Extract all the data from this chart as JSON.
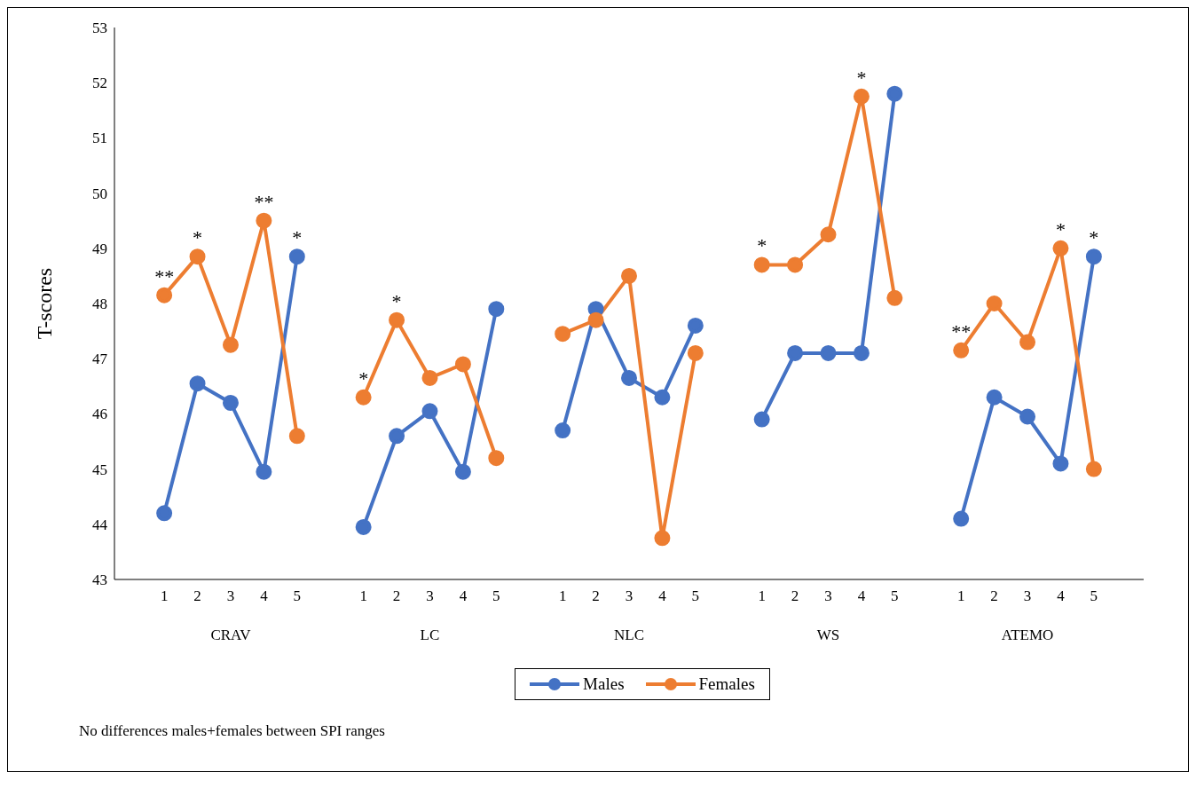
{
  "chart_data": {
    "type": "line",
    "ylabel": "T-scores",
    "categories": [
      "1",
      "2",
      "3",
      "4",
      "5",
      null,
      "1",
      "2",
      "3",
      "4",
      "5",
      null,
      "1",
      "2",
      "3",
      "4",
      "5",
      null,
      "1",
      "2",
      "3",
      "4",
      "5",
      null,
      "1",
      "2",
      "3",
      "4",
      "5"
    ],
    "series": [
      {
        "name": "Males",
        "color": "#4472c4",
        "values": [
          44.2,
          46.55,
          46.2,
          44.95,
          48.85,
          null,
          43.95,
          45.6,
          46.05,
          44.95,
          47.9,
          null,
          45.7,
          47.9,
          46.65,
          46.3,
          47.6,
          null,
          45.9,
          47.1,
          47.1,
          47.1,
          51.8,
          null,
          44.1,
          46.3,
          45.95,
          45.1,
          48.85
        ],
        "value_labels": [
          null,
          null,
          null,
          null,
          "*",
          null,
          null,
          null,
          null,
          null,
          null,
          null,
          null,
          null,
          null,
          null,
          null,
          null,
          null,
          null,
          null,
          null,
          null,
          null,
          null,
          null,
          null,
          null,
          "*"
        ]
      },
      {
        "name": "Females",
        "color": "#ed7d31",
        "values": [
          48.15,
          48.85,
          47.25,
          49.5,
          45.6,
          null,
          46.3,
          47.7,
          46.65,
          46.9,
          45.2,
          null,
          47.45,
          47.7,
          48.5,
          43.75,
          47.1,
          null,
          48.7,
          48.7,
          49.25,
          51.75,
          48.1,
          null,
          47.15,
          48.0,
          47.3,
          49.0,
          45.0
        ],
        "value_labels": [
          "**",
          "*",
          null,
          "**",
          null,
          null,
          "*",
          "*",
          null,
          null,
          null,
          null,
          null,
          null,
          null,
          null,
          null,
          null,
          "*",
          null,
          null,
          "*",
          null,
          null,
          "**",
          null,
          null,
          "*",
          null
        ]
      }
    ],
    "ylim": [
      43,
      53
    ],
    "yticks": [
      43,
      44,
      45,
      46,
      47,
      48,
      49,
      50,
      51,
      52,
      53
    ],
    "grid": false,
    "legend": "bottom",
    "marker": "circle",
    "line_style": "solid",
    "annotations": [
      "CRAV",
      "LC",
      "NLC",
      "WS",
      "ATEMO",
      "No differences males+females between SPI ranges"
    ]
  }
}
